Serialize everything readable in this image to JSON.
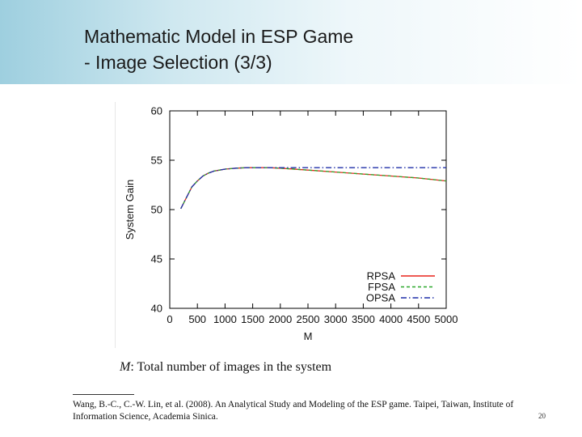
{
  "slide": {
    "title_line1": "Mathematic Model in ESP Game",
    "title_line2": "- Image Selection (3/3)",
    "caption_var": "M",
    "caption_text": ": Total number of images in the system",
    "reference_line1": "Wang, B.-C., C.-W. Lin, et al. (2008). An Analytical Study and Modeling of the ESP game. Taipei, Taiwan, Institute of",
    "reference_line2": "Information Science, Academia Sinica.",
    "slide_number": "20"
  },
  "chart_data": {
    "type": "line",
    "xlabel": "M",
    "ylabel": "System Gain",
    "xlim": [
      0,
      5000
    ],
    "ylim": [
      40,
      60
    ],
    "xticks": [
      0,
      500,
      1000,
      1500,
      2000,
      2500,
      3000,
      3500,
      4000,
      4500,
      5000
    ],
    "yticks": [
      40,
      45,
      50,
      55,
      60
    ],
    "grid": false,
    "legend_position": "bottom-right",
    "series": [
      {
        "name": "RPSA",
        "color": "#e8241c",
        "dash": "solid",
        "x": [
          200,
          300,
          400,
          500,
          600,
          700,
          800,
          900,
          1000,
          1200,
          1400,
          1600,
          1800,
          2000,
          2500,
          3000,
          3500,
          4000,
          4500,
          5000
        ],
        "y": [
          50.1,
          51.2,
          52.3,
          52.9,
          53.4,
          53.7,
          53.9,
          54.0,
          54.1,
          54.2,
          54.25,
          54.25,
          54.25,
          54.2,
          54.0,
          53.8,
          53.6,
          53.4,
          53.2,
          52.9
        ]
      },
      {
        "name": "FPSA",
        "color": "#2aa82a",
        "dash": "dashed",
        "x": [
          200,
          300,
          400,
          500,
          600,
          700,
          800,
          900,
          1000,
          1200,
          1400,
          1600,
          1800,
          2000,
          2500,
          3000,
          3500,
          4000,
          4500,
          5000
        ],
        "y": [
          50.1,
          51.2,
          52.3,
          52.9,
          53.4,
          53.7,
          53.9,
          54.0,
          54.1,
          54.2,
          54.25,
          54.25,
          54.25,
          54.2,
          54.0,
          53.8,
          53.6,
          53.4,
          53.2,
          52.9
        ]
      },
      {
        "name": "OPSA",
        "color": "#1f2fa8",
        "dash": "dashdot",
        "x": [
          200,
          300,
          400,
          500,
          600,
          700,
          800,
          900,
          1000,
          1200,
          1400,
          1600,
          1800,
          2000,
          2500,
          3000,
          3500,
          4000,
          4500,
          5000
        ],
        "y": [
          50.1,
          51.2,
          52.3,
          52.9,
          53.4,
          53.7,
          53.9,
          54.0,
          54.1,
          54.2,
          54.25,
          54.25,
          54.25,
          54.25,
          54.25,
          54.25,
          54.25,
          54.25,
          54.25,
          54.25
        ]
      }
    ]
  }
}
